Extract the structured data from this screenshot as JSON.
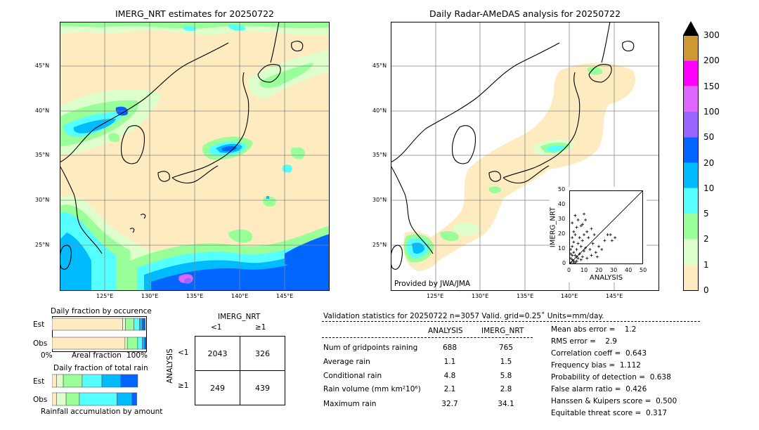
{
  "panels": {
    "left_title": "IMERG_NRT estimates for 20250722",
    "right_title": "Daily Radar-AMeDAS analysis for 20250722",
    "lat_labels": [
      "45°N",
      "40°N",
      "35°N",
      "30°N",
      "25°N"
    ],
    "lon_labels": [
      "125°E",
      "130°E",
      "135°E",
      "140°E",
      "145°E"
    ],
    "credit": "Provided by JWA/JMA"
  },
  "colorbar": {
    "ticks": [
      "300",
      "200",
      "150",
      "100",
      "50",
      "20",
      "10",
      "5",
      "2",
      "1",
      "0"
    ],
    "colors": [
      "#cc9933",
      "#ff00ff",
      "#dd66ff",
      "#9966ff",
      "#0066ff",
      "#00bbff",
      "#55ffff",
      "#99ff99",
      "#ddffcc",
      "#ffebc0"
    ]
  },
  "scatter": {
    "ylabel": "IMERG_NRT",
    "xlabel": "ANALYSIS",
    "ticks": [
      "0",
      "10",
      "20",
      "30",
      "40",
      "50"
    ]
  },
  "fraction_occurrence": {
    "title": "Daily fraction by occurence",
    "row_est": "Est",
    "row_obs": "Obs",
    "axis_left": "0%",
    "axis_mid": "Areal fraction",
    "axis_right": "100%"
  },
  "fraction_total": {
    "title": "Daily fraction of total rain",
    "row_est": "Est",
    "row_obs": "Obs",
    "caption": "Rainfall accumulation by amount"
  },
  "contingency": {
    "title": "IMERG_NRT",
    "col_lt": "<1",
    "col_ge": "≥1",
    "row_label": "ANALYSIS",
    "row_lt": "<1",
    "row_ge": "≥1",
    "cells": [
      "2043",
      "326",
      "249",
      "439"
    ]
  },
  "validation": {
    "header": "Validation statistics for 20250722  n=3057 Valid. grid=0.25˚ Units=mm/day.",
    "col_analysis": "ANALYSIS",
    "col_imerg": "IMERG_NRT",
    "rows": [
      {
        "label": "Num of gridpoints raining",
        "analysis": "688",
        "imerg": "765"
      },
      {
        "label": "Average rain",
        "analysis": "1.1",
        "imerg": "1.5"
      },
      {
        "label": "Conditional rain",
        "analysis": "4.8",
        "imerg": "5.8"
      },
      {
        "label": "Rain volume (mm km²10⁶)",
        "analysis": "2.1",
        "imerg": "2.8"
      },
      {
        "label": "Maximum rain",
        "analysis": "32.7",
        "imerg": "34.1"
      }
    ],
    "scores": [
      "Mean abs error =    1.2",
      "RMS error =    2.9",
      "Correlation coeff =  0.643",
      "Frequency bias =  1.112",
      "Probability of detection =  0.638",
      "False alarm ratio =  0.426",
      "Hanssen & Kuipers score =  0.500",
      "Equitable threat score =  0.317"
    ]
  },
  "chart_data": [
    {
      "type": "heatmap",
      "title": "IMERG_NRT estimates for 20250722",
      "xlim": [
        120,
        150
      ],
      "ylim": [
        20,
        50
      ],
      "x_ticks": [
        125,
        130,
        135,
        140,
        145
      ],
      "y_ticks": [
        25,
        30,
        35,
        40,
        45
      ]
    },
    {
      "type": "heatmap",
      "title": "Daily Radar-AMeDAS analysis for 20250722",
      "xlim": [
        120,
        150
      ],
      "ylim": [
        20,
        50
      ],
      "x_ticks": [
        125,
        130,
        135,
        140,
        145
      ],
      "y_ticks": [
        25,
        30,
        35,
        40,
        45
      ]
    },
    {
      "type": "scatter",
      "xlabel": "ANALYSIS",
      "ylabel": "IMERG_NRT",
      "xlim": [
        0,
        50
      ],
      "ylim": [
        0,
        50
      ],
      "points": [
        [
          1,
          1
        ],
        [
          2,
          3
        ],
        [
          3,
          2
        ],
        [
          1,
          4
        ],
        [
          4,
          1
        ],
        [
          2,
          6
        ],
        [
          5,
          2
        ],
        [
          3,
          8
        ],
        [
          6,
          4
        ],
        [
          1,
          10
        ],
        [
          8,
          3
        ],
        [
          2,
          12
        ],
        [
          4,
          6
        ],
        [
          7,
          7
        ],
        [
          3,
          15
        ],
        [
          9,
          5
        ],
        [
          5,
          10
        ],
        [
          10,
          9
        ],
        [
          2,
          18
        ],
        [
          6,
          14
        ],
        [
          12,
          4
        ],
        [
          4,
          20
        ],
        [
          8,
          12
        ],
        [
          15,
          6
        ],
        [
          3,
          22
        ],
        [
          11,
          11
        ],
        [
          7,
          18
        ],
        [
          14,
          10
        ],
        [
          5,
          25
        ],
        [
          9,
          16
        ],
        [
          18,
          8
        ],
        [
          2,
          28
        ],
        [
          10,
          20
        ],
        [
          16,
          14
        ],
        [
          20,
          12
        ],
        [
          6,
          30
        ],
        [
          13,
          18
        ],
        [
          12,
          22
        ],
        [
          8,
          26
        ],
        [
          22,
          10
        ],
        [
          24,
          16
        ],
        [
          17,
          20
        ],
        [
          4,
          33
        ],
        [
          26,
          20
        ],
        [
          29,
          16
        ],
        [
          31,
          18
        ],
        [
          28,
          20
        ],
        [
          15,
          24
        ],
        [
          11,
          30
        ],
        [
          10,
          34
        ],
        [
          9,
          27
        ],
        [
          19,
          5
        ],
        [
          3,
          1
        ],
        [
          1,
          7
        ],
        [
          5,
          5
        ]
      ]
    },
    {
      "type": "bar",
      "title": "Daily fraction by occurence",
      "categories": [
        "Est",
        "Obs"
      ],
      "series": [
        {
          "values": [
            0.75,
            0.775
          ]
        },
        {
          "values": [
            0.03,
            0.025
          ]
        },
        {
          "values": [
            0.09,
            0.11
          ]
        },
        {
          "values": [
            0.06,
            0.05
          ]
        },
        {
          "values": [
            0.03,
            0.025
          ]
        },
        {
          "values": [
            0.03,
            0.015
          ]
        }
      ]
    },
    {
      "type": "bar",
      "title": "Daily fraction of total rain",
      "categories": [
        "Est",
        "Obs"
      ],
      "series": [
        {
          "values": [
            0.05,
            0.05
          ]
        },
        {
          "values": [
            0.07,
            0.1
          ]
        },
        {
          "values": [
            0.2,
            0.14
          ]
        },
        {
          "values": [
            0.21,
            0.4
          ]
        },
        {
          "values": [
            0.2,
            0.16
          ]
        },
        {
          "values": [
            0.18,
            0.05
          ]
        }
      ]
    }
  ]
}
